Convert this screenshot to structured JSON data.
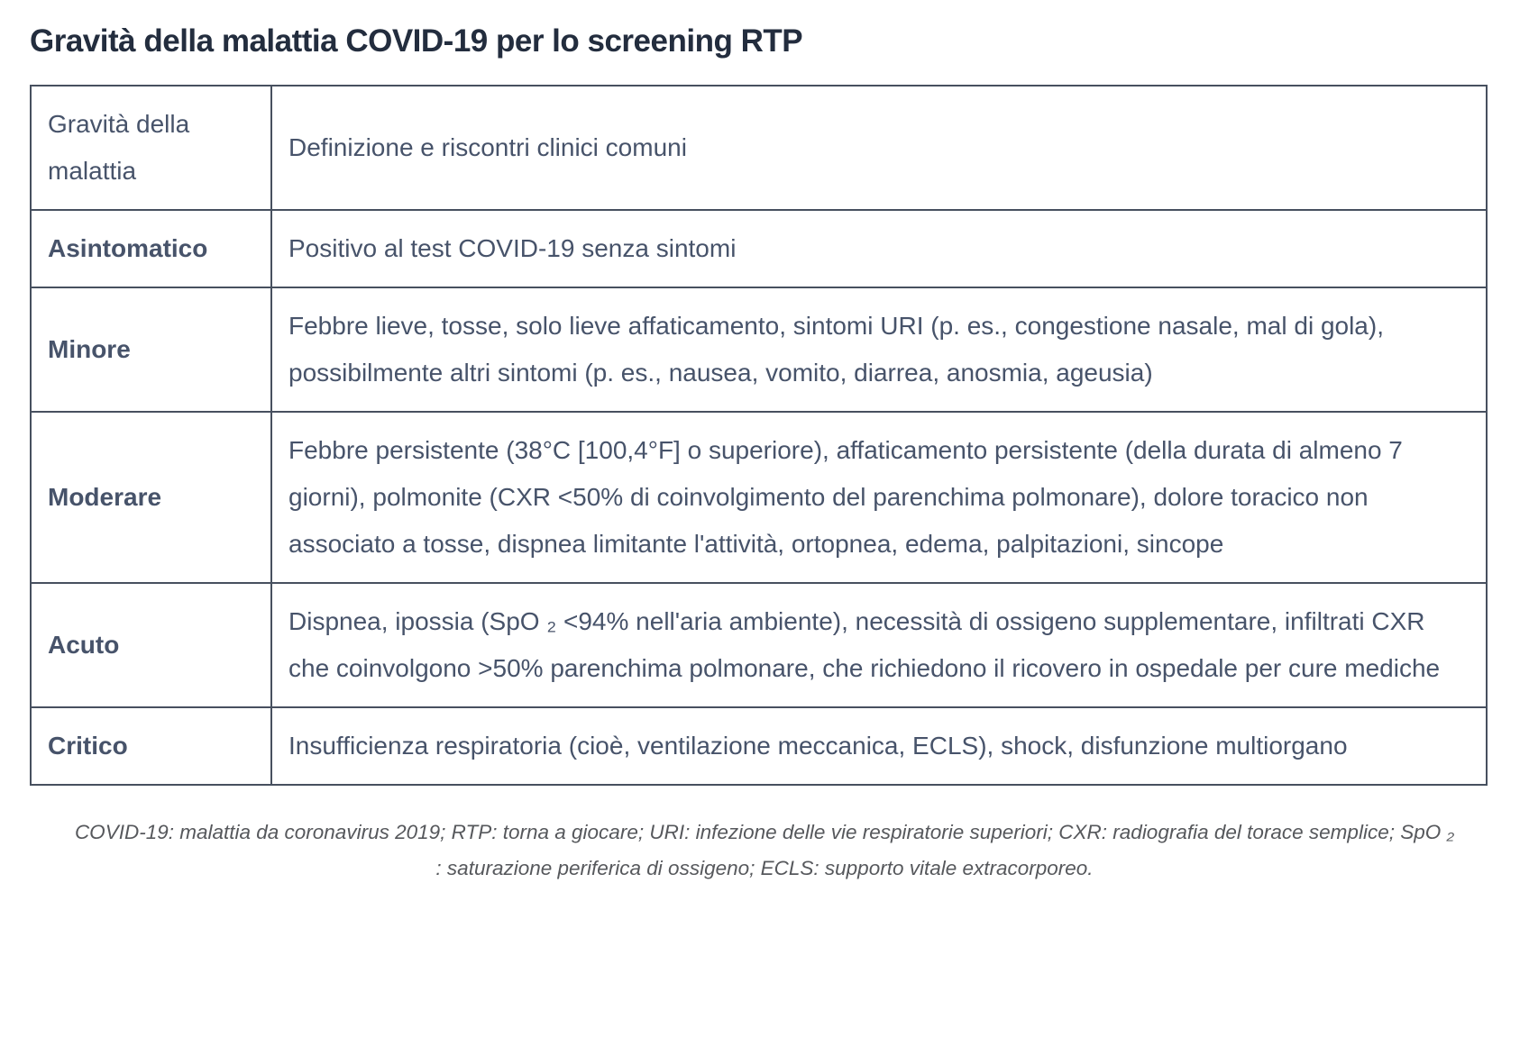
{
  "page": {
    "title": "Gravità della malattia COVID-19 per lo screening RTP"
  },
  "table": {
    "header": {
      "severity": "Gravità della malattia",
      "definition": "Definizione e riscontri clinici comuni"
    },
    "rows": [
      {
        "severity": "Asintomatico",
        "definition": "Positivo al test COVID-19 senza sintomi"
      },
      {
        "severity": "Minore",
        "definition": "Febbre lieve, tosse, solo lieve affaticamento, sintomi URI (p. es., congestione nasale, mal di gola), possibilmente altri sintomi (p. es., nausea, vomito, diarrea, anosmia, ageusia)"
      },
      {
        "severity": "Moderare",
        "definition": "Febbre persistente (38°C [100,4°F] o superiore), affaticamento persistente (della durata di almeno 7 giorni), polmonite (CXR <50% di coinvolgimento del parenchima polmonare), dolore toracico non associato a tosse, dispnea limitante l'attività, ortopnea, edema, palpitazioni, sincope"
      },
      {
        "severity": "Acuto",
        "definition": "Dispnea, ipossia (SpO ₂  <94% nell'aria ambiente), necessità di ossigeno supplementare, infiltrati CXR che coinvolgono >50% parenchima polmonare, che richiedono il ricovero in ospedale per cure mediche"
      },
      {
        "severity": "Critico",
        "definition": "Insufficienza respiratoria (cioè, ventilazione meccanica, ECLS), shock, disfunzione multiorgano"
      }
    ]
  },
  "footnote": {
    "text": "COVID-19: malattia da coronavirus 2019; RTP: torna a giocare; URI: infezione delle vie respiratorie superiori; CXR: radiografia del torace semplice; SpO ₂ : saturazione periferica di ossigeno; ECLS: supporto vitale extracorporeo."
  },
  "colors": {
    "title_text": "#232d3e",
    "body_text": "#47536a",
    "border": "#47505f",
    "footnote_text": "#56585c",
    "background": "#ffffff"
  }
}
